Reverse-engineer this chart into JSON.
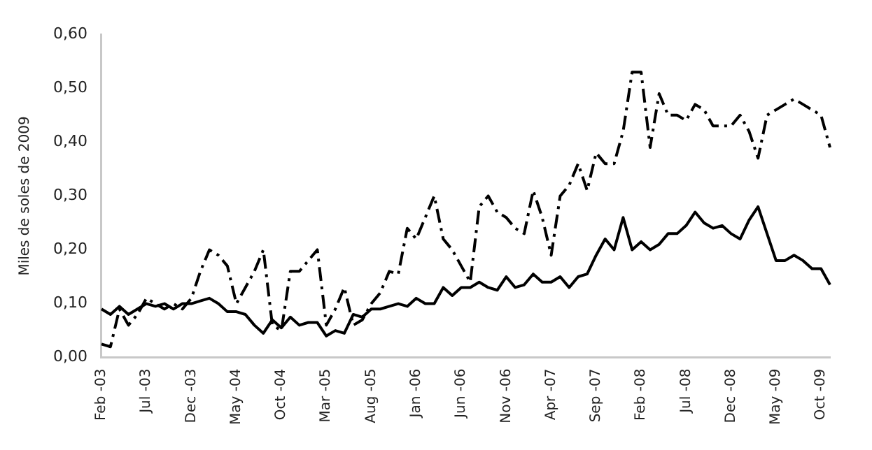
{
  "chart_data": {
    "type": "line",
    "ylabel": "Miles de soles de 2009",
    "categories": [
      "Feb -03",
      null,
      null,
      null,
      null,
      "Jul -03",
      null,
      null,
      null,
      null,
      "Dec -03",
      null,
      null,
      null,
      null,
      "May -04",
      null,
      null,
      null,
      null,
      "Oct -04",
      null,
      null,
      null,
      null,
      "Mar -05",
      null,
      null,
      null,
      null,
      "Aug -05",
      null,
      null,
      null,
      null,
      "Jan -06",
      null,
      null,
      null,
      null,
      "Jun -06",
      null,
      null,
      null,
      null,
      "Nov -06",
      null,
      null,
      null,
      null,
      "Apr -07",
      null,
      null,
      null,
      null,
      "Sep -07",
      null,
      null,
      null,
      null,
      "Feb -08",
      null,
      null,
      null,
      null,
      "Jul -08",
      null,
      null,
      null,
      null,
      "Dec -08",
      null,
      null,
      null,
      null,
      "May -09",
      null,
      null,
      null,
      null,
      "Oct -09",
      null
    ],
    "series": [
      {
        "color": "#000000",
        "line_style": "solid",
        "values": [
          0.09,
          0.08,
          0.095,
          0.08,
          0.09,
          0.1,
          0.095,
          0.1,
          0.09,
          0.1,
          0.1,
          0.105,
          0.11,
          0.1,
          0.085,
          0.085,
          0.08,
          0.06,
          0.045,
          0.07,
          0.055,
          0.075,
          0.06,
          0.065,
          0.065,
          0.04,
          0.05,
          0.045,
          0.08,
          0.075,
          0.09,
          0.09,
          0.095,
          0.1,
          0.095,
          0.11,
          0.1,
          0.1,
          0.13,
          0.115,
          0.13,
          0.13,
          0.14,
          0.13,
          0.125,
          0.15,
          0.13,
          0.135,
          0.155,
          0.14,
          0.14,
          0.15,
          0.13,
          0.15,
          0.155,
          0.19,
          0.22,
          0.2,
          0.26,
          0.2,
          0.215,
          0.2,
          0.21,
          0.23,
          0.23,
          0.245,
          0.27,
          0.25,
          0.24,
          0.245,
          0.23,
          0.22,
          0.255,
          0.28,
          0.23,
          0.18,
          0.18,
          0.19,
          0.18,
          0.165,
          0.165,
          0.135
        ]
      },
      {
        "color": "#000000",
        "line_style": "dashed",
        "values": [
          0.025,
          0.02,
          0.09,
          0.06,
          0.08,
          0.11,
          0.1,
          0.09,
          0.1,
          0.09,
          0.11,
          0.16,
          0.2,
          0.19,
          0.17,
          0.1,
          0.13,
          0.16,
          0.2,
          0.06,
          0.05,
          0.16,
          0.16,
          0.18,
          0.2,
          0.06,
          0.09,
          0.13,
          0.06,
          0.07,
          0.1,
          0.12,
          0.16,
          0.155,
          0.24,
          0.22,
          0.26,
          0.3,
          0.22,
          0.2,
          0.17,
          0.14,
          0.28,
          0.3,
          0.27,
          0.26,
          0.24,
          0.23,
          0.31,
          0.26,
          0.19,
          0.3,
          0.32,
          0.36,
          0.31,
          0.38,
          0.36,
          0.36,
          0.42,
          0.53,
          0.53,
          0.39,
          0.49,
          0.45,
          0.45,
          0.44,
          0.47,
          0.46,
          0.43,
          0.43,
          0.43,
          0.45,
          0.42,
          0.37,
          0.45,
          0.46,
          0.47,
          0.48,
          0.47,
          0.46,
          0.45,
          0.39
        ]
      }
    ],
    "ylim": [
      0,
      0.6
    ],
    "yticks": [
      {
        "value": 0,
        "label": "0,00"
      },
      {
        "value": 0.1,
        "label": "0,10"
      },
      {
        "value": 0.2,
        "label": "0,20"
      },
      {
        "value": 0.3,
        "label": "0,30"
      },
      {
        "value": 0.4,
        "label": "0,40"
      },
      {
        "value": 0.5,
        "label": "0,50"
      },
      {
        "value": 0.6,
        "label": "0,60"
      }
    ],
    "grid": false,
    "legend": false,
    "marker": "none"
  }
}
